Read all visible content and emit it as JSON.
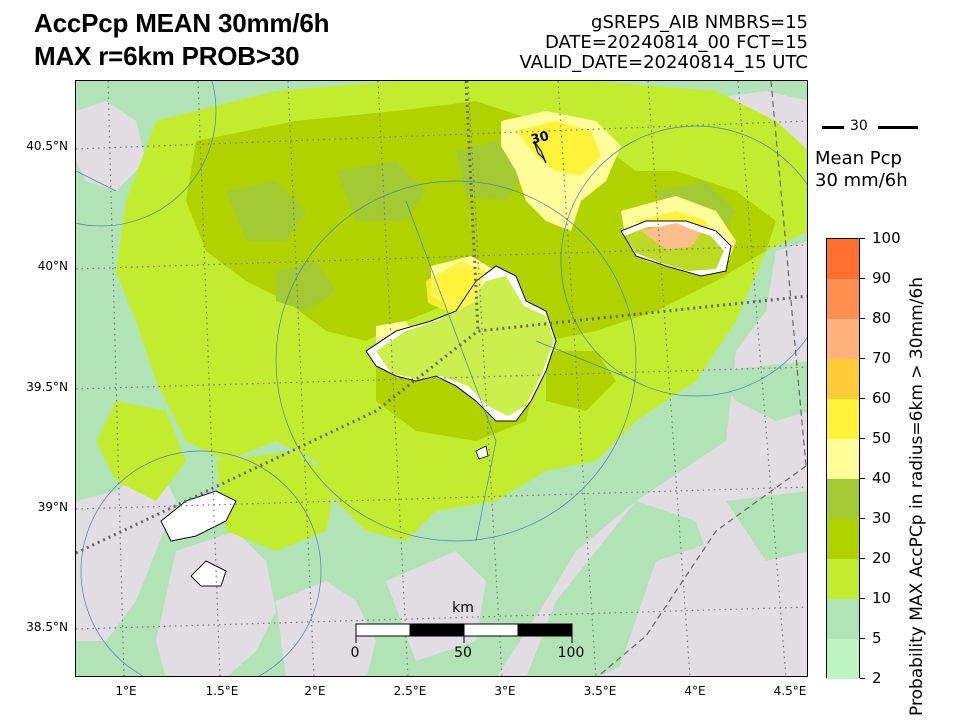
{
  "title": {
    "line1": "AccPcp MEAN 30mm/6h",
    "line2": "MAX r=6km PROB>30"
  },
  "run_info": {
    "line1": "gSREPS_AIB     NMBRS=15",
    "line2": "DATE=20240814_00    FCT=15",
    "line3": "VALID_DATE=20240814_15 UTC"
  },
  "axes": {
    "lat_labels": [
      "40.5°N",
      "40°N",
      "39.5°N",
      "39°N",
      "38.5°N"
    ],
    "lon_labels": [
      "1°E",
      "1.5°E",
      "2°E",
      "2.5°E",
      "3°E",
      "3.5°E",
      "4°E",
      "4.5°E"
    ]
  },
  "contour": {
    "label": "30",
    "legend_value": "30",
    "legend_title_line1": "Mean Pcp",
    "legend_title_line2": "30 mm/6h"
  },
  "colorbar": {
    "label": "Probability MAX AccPCp in radius=6km > 30mm/6h",
    "ticks": [
      "2",
      "5",
      "10",
      "20",
      "30",
      "40",
      "50",
      "60",
      "70",
      "80",
      "90",
      "100"
    ],
    "top_value": "100",
    "colors": [
      "#c0f5c3",
      "#b2e3b6",
      "#c2ed2e",
      "#b0d300",
      "#a3c933",
      "#fffe9a",
      "#fff33a",
      "#ffcc38",
      "#ffb27b",
      "#ff8f50",
      "#ff6f30"
    ]
  },
  "map_colors": {
    "background": "#e1dde3",
    "light_green": "#b2e3b6",
    "lime": "#c2ed2e",
    "olive": "#b0d300",
    "dark_olive": "#a3c933",
    "pale_yellow": "#fffe9a",
    "yellow": "#fff33a",
    "orange": "#ffb27b",
    "land_white": "#ffffff"
  },
  "scale_bar": {
    "unit": "km",
    "labels": [
      "0",
      "50",
      "100"
    ]
  }
}
